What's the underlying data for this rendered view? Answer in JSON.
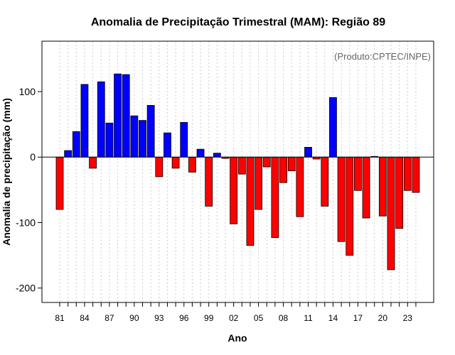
{
  "chart_data": {
    "type": "bar",
    "title": "Anomalia de Precipitação Trimestral (MAM): Região 89",
    "xlabel": "Ano",
    "ylabel": "Anomalia de precipitação (mm)",
    "annotation": "(Produto:CPTEC/INPE)",
    "ylim": [
      -222,
      177
    ],
    "y_ticks": [
      100,
      0,
      -100,
      -200
    ],
    "x_tick_labels": [
      "81",
      "84",
      "87",
      "90",
      "93",
      "96",
      "99",
      "02",
      "05",
      "08",
      "11",
      "14",
      "17",
      "20",
      "23"
    ],
    "x_tick_every": 3,
    "grid": true,
    "categories": [
      "1981",
      "1982",
      "1983",
      "1984",
      "1985",
      "1986",
      "1987",
      "1988",
      "1989",
      "1990",
      "1991",
      "1992",
      "1993",
      "1994",
      "1995",
      "1996",
      "1997",
      "1998",
      "1999",
      "2000",
      "2001",
      "2002",
      "2003",
      "2004",
      "2005",
      "2006",
      "2007",
      "2008",
      "2009",
      "2010",
      "2011",
      "2012",
      "2013",
      "2014",
      "2015",
      "2016",
      "2017",
      "2018",
      "2019",
      "2020",
      "2021",
      "2022",
      "2023",
      "2024"
    ],
    "values": [
      -80,
      10,
      39,
      111,
      -17,
      115,
      52,
      127,
      126,
      63,
      56,
      79,
      -30,
      37,
      -17,
      53,
      -23,
      12,
      -75,
      6,
      -2,
      -102,
      -26,
      -135,
      -80,
      -15,
      -123,
      -39,
      -21,
      -91,
      15,
      -3,
      -75,
      91,
      -129,
      -150,
      -51,
      -93,
      1,
      -90,
      -172,
      -109,
      -51,
      -54
    ],
    "colors": {
      "positive": "#0000ff",
      "negative": "#ff0000",
      "zero_line": "#000000",
      "grid": "#cccccc",
      "note": "#666666"
    }
  }
}
